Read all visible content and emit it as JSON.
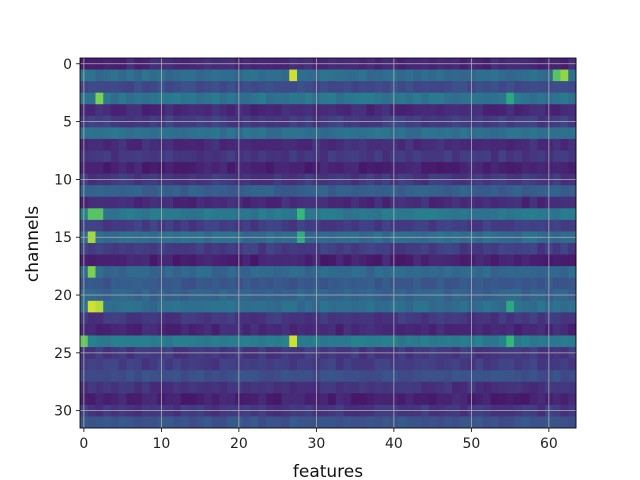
{
  "chart_data": {
    "type": "heatmap",
    "title": "",
    "xlabel": "features",
    "ylabel": "channels",
    "xlim": [
      -0.5,
      63.5
    ],
    "ylim": [
      31.5,
      -0.5
    ],
    "n_features": 64,
    "n_channels": 32,
    "x_ticks": [
      0,
      10,
      20,
      30,
      40,
      50,
      60
    ],
    "y_ticks": [
      0,
      5,
      10,
      15,
      20,
      25,
      30
    ],
    "grid": true,
    "colormap": "viridis",
    "value_range": [
      0,
      1
    ],
    "channel_base_levels": [
      0.14,
      0.45,
      0.28,
      0.48,
      0.15,
      0.22,
      0.46,
      0.16,
      0.2,
      0.12,
      0.2,
      0.38,
      0.15,
      0.5,
      0.22,
      0.44,
      0.22,
      0.12,
      0.42,
      0.34,
      0.4,
      0.45,
      0.2,
      0.14,
      0.52,
      0.2,
      0.22,
      0.3,
      0.18,
      0.12,
      0.2,
      0.32
    ],
    "highlights": [
      {
        "channel": 1,
        "feature": 27,
        "value": 0.95
      },
      {
        "channel": 1,
        "feature": 61,
        "value": 0.8
      },
      {
        "channel": 1,
        "feature": 62,
        "value": 0.88
      },
      {
        "channel": 3,
        "feature": 2,
        "value": 0.85
      },
      {
        "channel": 3,
        "feature": 55,
        "value": 0.7
      },
      {
        "channel": 13,
        "feature": 1,
        "value": 0.8
      },
      {
        "channel": 13,
        "feature": 2,
        "value": 0.8
      },
      {
        "channel": 13,
        "feature": 28,
        "value": 0.75
      },
      {
        "channel": 15,
        "feature": 1,
        "value": 0.9
      },
      {
        "channel": 15,
        "feature": 28,
        "value": 0.72
      },
      {
        "channel": 18,
        "feature": 1,
        "value": 0.85
      },
      {
        "channel": 21,
        "feature": 1,
        "value": 0.95
      },
      {
        "channel": 21,
        "feature": 2,
        "value": 0.92
      },
      {
        "channel": 21,
        "feature": 55,
        "value": 0.7
      },
      {
        "channel": 24,
        "feature": 0,
        "value": 0.82
      },
      {
        "channel": 24,
        "feature": 27,
        "value": 0.95
      },
      {
        "channel": 24,
        "feature": 55,
        "value": 0.75
      }
    ]
  }
}
